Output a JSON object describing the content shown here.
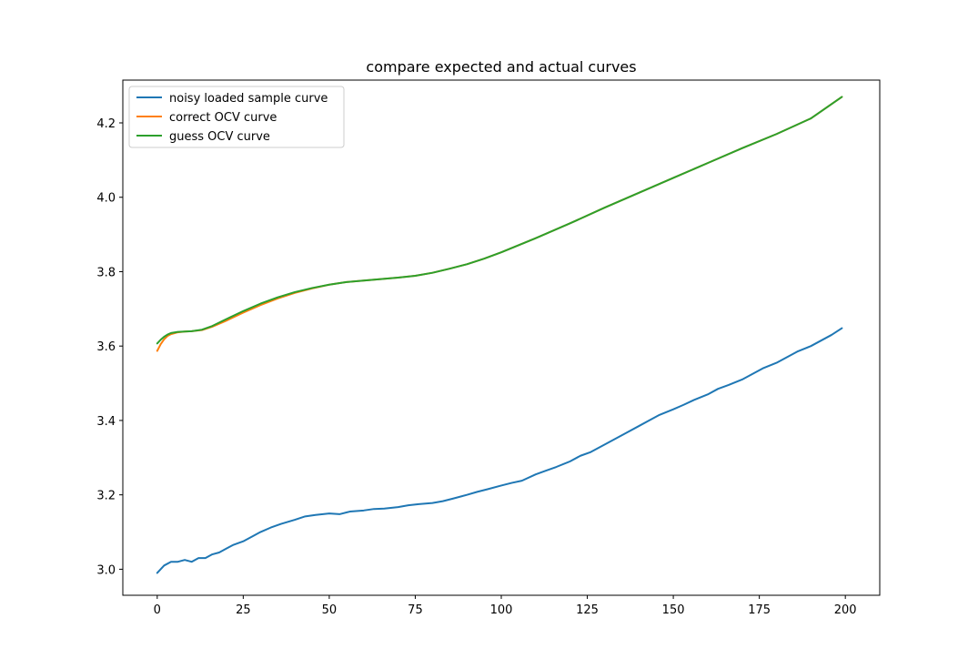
{
  "chart_data": {
    "type": "line",
    "title": "compare expected and actual curves",
    "xlabel": "",
    "ylabel": "",
    "xlim": [
      -10,
      210
    ],
    "ylim": [
      2.93,
      4.315
    ],
    "xticks": [
      0,
      25,
      50,
      75,
      100,
      125,
      150,
      175,
      200
    ],
    "yticks": [
      3.0,
      3.2,
      3.4,
      3.6,
      3.8,
      4.0,
      4.2
    ],
    "grid": false,
    "legend_position": "upper-left",
    "series": [
      {
        "name": "noisy loaded sample curve",
        "color": "#1f77b4",
        "x": [
          0,
          2,
          4,
          6,
          8,
          10,
          12,
          14,
          16,
          18,
          20,
          22,
          25,
          28,
          30,
          33,
          36,
          40,
          43,
          46,
          50,
          53,
          56,
          60,
          63,
          66,
          70,
          73,
          76,
          80,
          83,
          86,
          90,
          93,
          96,
          100,
          103,
          106,
          110,
          113,
          116,
          120,
          123,
          126,
          130,
          133,
          136,
          140,
          143,
          146,
          150,
          153,
          156,
          160,
          163,
          166,
          170,
          173,
          176,
          180,
          183,
          186,
          190,
          193,
          196,
          199
        ],
        "values": [
          2.99,
          3.01,
          3.02,
          3.02,
          3.025,
          3.02,
          3.03,
          3.03,
          3.04,
          3.045,
          3.055,
          3.065,
          3.075,
          3.09,
          3.1,
          3.112,
          3.122,
          3.133,
          3.142,
          3.146,
          3.15,
          3.148,
          3.155,
          3.158,
          3.162,
          3.163,
          3.167,
          3.172,
          3.175,
          3.178,
          3.183,
          3.19,
          3.2,
          3.208,
          3.215,
          3.225,
          3.232,
          3.238,
          3.255,
          3.265,
          3.275,
          3.29,
          3.305,
          3.315,
          3.335,
          3.35,
          3.365,
          3.385,
          3.4,
          3.415,
          3.43,
          3.442,
          3.455,
          3.47,
          3.485,
          3.495,
          3.51,
          3.525,
          3.54,
          3.555,
          3.57,
          3.585,
          3.6,
          3.615,
          3.63,
          3.648
        ]
      },
      {
        "name": "correct OCV curve",
        "color": "#ff7f0e",
        "x": [
          0,
          1,
          2,
          3,
          4,
          6,
          8,
          10,
          13,
          16,
          20,
          25,
          30,
          35,
          40,
          45,
          50,
          55,
          60,
          65,
          70,
          75,
          80,
          85,
          90,
          95,
          100,
          110,
          120,
          130,
          140,
          150,
          160,
          170,
          180,
          190,
          199
        ],
        "values": [
          3.587,
          3.605,
          3.618,
          3.627,
          3.632,
          3.637,
          3.639,
          3.64,
          3.643,
          3.652,
          3.668,
          3.69,
          3.71,
          3.728,
          3.743,
          3.755,
          3.765,
          3.772,
          3.776,
          3.78,
          3.784,
          3.789,
          3.797,
          3.808,
          3.82,
          3.835,
          3.852,
          3.89,
          3.93,
          3.972,
          4.012,
          4.052,
          4.092,
          4.132,
          4.17,
          4.212,
          4.27
        ]
      },
      {
        "name": "guess OCV curve",
        "color": "#2ca02c",
        "x": [
          0,
          1,
          2,
          3,
          4,
          6,
          8,
          10,
          13,
          16,
          20,
          25,
          30,
          35,
          40,
          45,
          50,
          55,
          60,
          65,
          70,
          75,
          80,
          85,
          90,
          95,
          100,
          110,
          120,
          130,
          140,
          150,
          160,
          170,
          180,
          190,
          199
        ],
        "values": [
          3.607,
          3.617,
          3.625,
          3.631,
          3.635,
          3.638,
          3.639,
          3.64,
          3.644,
          3.654,
          3.672,
          3.694,
          3.714,
          3.731,
          3.745,
          3.756,
          3.765,
          3.772,
          3.776,
          3.78,
          3.784,
          3.789,
          3.797,
          3.808,
          3.82,
          3.835,
          3.852,
          3.89,
          3.93,
          3.972,
          4.012,
          4.052,
          4.092,
          4.132,
          4.17,
          4.212,
          4.27
        ]
      }
    ]
  }
}
